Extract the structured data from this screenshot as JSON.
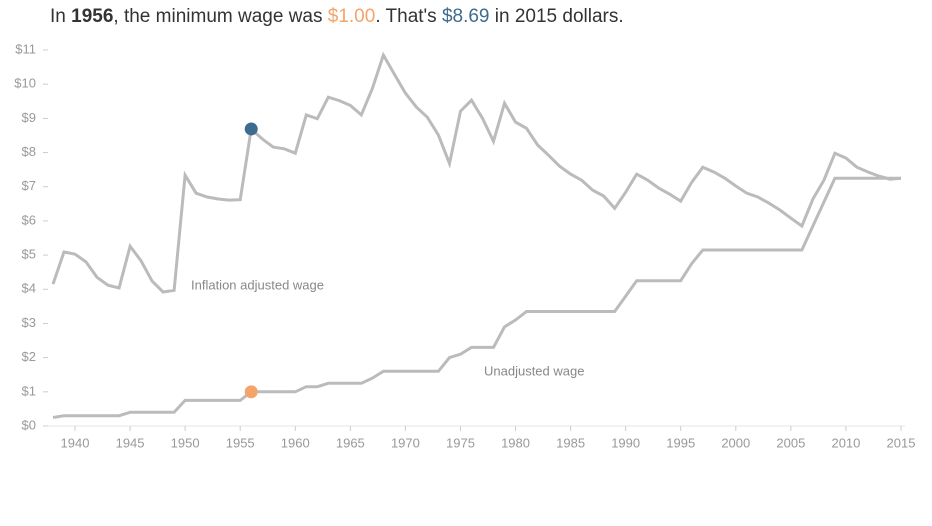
{
  "chart_data": {
    "type": "line",
    "title_parts": [
      {
        "text": "In "
      },
      {
        "text": "1956",
        "bold": true
      },
      {
        "text": ", the minimum wage was "
      },
      {
        "text": "$1.00",
        "color": "#f4a46a"
      },
      {
        "text": ". That's "
      },
      {
        "text": "$8.69",
        "color": "#3e6c8f"
      },
      {
        "text": " in 2015 dollars."
      }
    ],
    "x": [
      1938,
      1939,
      1940,
      1941,
      1942,
      1943,
      1944,
      1945,
      1946,
      1947,
      1948,
      1949,
      1950,
      1951,
      1952,
      1953,
      1954,
      1955,
      1956,
      1957,
      1958,
      1959,
      1960,
      1961,
      1962,
      1963,
      1964,
      1965,
      1966,
      1967,
      1968,
      1969,
      1970,
      1971,
      1972,
      1973,
      1974,
      1975,
      1976,
      1977,
      1978,
      1979,
      1980,
      1981,
      1982,
      1983,
      1984,
      1985,
      1986,
      1987,
      1988,
      1989,
      1990,
      1991,
      1992,
      1993,
      1994,
      1995,
      1996,
      1997,
      1998,
      1999,
      2000,
      2001,
      2002,
      2003,
      2004,
      2005,
      2006,
      2007,
      2008,
      2009,
      2010,
      2011,
      2012,
      2013,
      2014,
      2015
    ],
    "series": [
      {
        "name": "Inflation adjusted wage",
        "color": "#bbbbbb",
        "highlight_color": "#3e6c8f",
        "values": [
          4.15,
          5.09,
          5.03,
          4.8,
          4.35,
          4.12,
          4.04,
          5.26,
          4.83,
          4.24,
          3.92,
          3.97,
          7.34,
          6.81,
          6.7,
          6.64,
          6.61,
          6.62,
          8.69,
          8.4,
          8.16,
          8.11,
          7.98,
          9.1,
          8.99,
          9.62,
          9.52,
          9.38,
          9.1,
          9.88,
          10.85,
          10.29,
          9.74,
          9.33,
          9.03,
          8.51,
          7.68,
          9.21,
          9.53,
          9.0,
          8.33,
          9.44,
          8.89,
          8.71,
          8.22,
          7.92,
          7.6,
          7.37,
          7.19,
          6.9,
          6.73,
          6.37,
          6.84,
          7.37,
          7.19,
          6.96,
          6.78,
          6.58,
          7.13,
          7.57,
          7.43,
          7.25,
          7.02,
          6.81,
          6.7,
          6.52,
          6.32,
          6.08,
          5.85,
          6.64,
          7.19,
          7.98,
          7.84,
          7.57,
          7.43,
          7.31,
          7.22,
          7.25
        ]
      },
      {
        "name": "Unadjusted wage",
        "color": "#bbbbbb",
        "highlight_color": "#f4a46a",
        "values": [
          0.25,
          0.3,
          0.3,
          0.3,
          0.3,
          0.3,
          0.3,
          0.4,
          0.4,
          0.4,
          0.4,
          0.4,
          0.75,
          0.75,
          0.75,
          0.75,
          0.75,
          0.75,
          1.0,
          1.0,
          1.0,
          1.0,
          1.0,
          1.15,
          1.15,
          1.25,
          1.25,
          1.25,
          1.25,
          1.4,
          1.6,
          1.6,
          1.6,
          1.6,
          1.6,
          1.6,
          2.0,
          2.1,
          2.3,
          2.3,
          2.3,
          2.9,
          3.1,
          3.35,
          3.35,
          3.35,
          3.35,
          3.35,
          3.35,
          3.35,
          3.35,
          3.35,
          3.8,
          4.25,
          4.25,
          4.25,
          4.25,
          4.25,
          4.75,
          5.15,
          5.15,
          5.15,
          5.15,
          5.15,
          5.15,
          5.15,
          5.15,
          5.15,
          5.15,
          5.85,
          6.55,
          7.25,
          7.25,
          7.25,
          7.25,
          7.25,
          7.25,
          7.25
        ]
      }
    ],
    "highlight_x": 1956,
    "xlim": [
      1937,
      2015
    ],
    "xticks": [
      1940,
      1945,
      1950,
      1955,
      1960,
      1965,
      1970,
      1975,
      1980,
      1985,
      1990,
      1995,
      2000,
      2005,
      2010,
      2015
    ],
    "ylim": [
      0,
      11
    ],
    "yticks": [
      {
        "value": 0,
        "label": "$0"
      },
      {
        "value": 1,
        "label": "$1"
      },
      {
        "value": 2,
        "label": "$2"
      },
      {
        "value": 3,
        "label": "$3"
      },
      {
        "value": 4,
        "label": "$4"
      },
      {
        "value": 5,
        "label": "$5"
      },
      {
        "value": 6,
        "label": "$6"
      },
      {
        "value": 7,
        "label": "$7"
      },
      {
        "value": 8,
        "label": "$8"
      },
      {
        "value": 9,
        "label": "$9"
      },
      {
        "value": 10,
        "label": "$10"
      },
      {
        "value": 11,
        "label": "$11"
      }
    ]
  }
}
